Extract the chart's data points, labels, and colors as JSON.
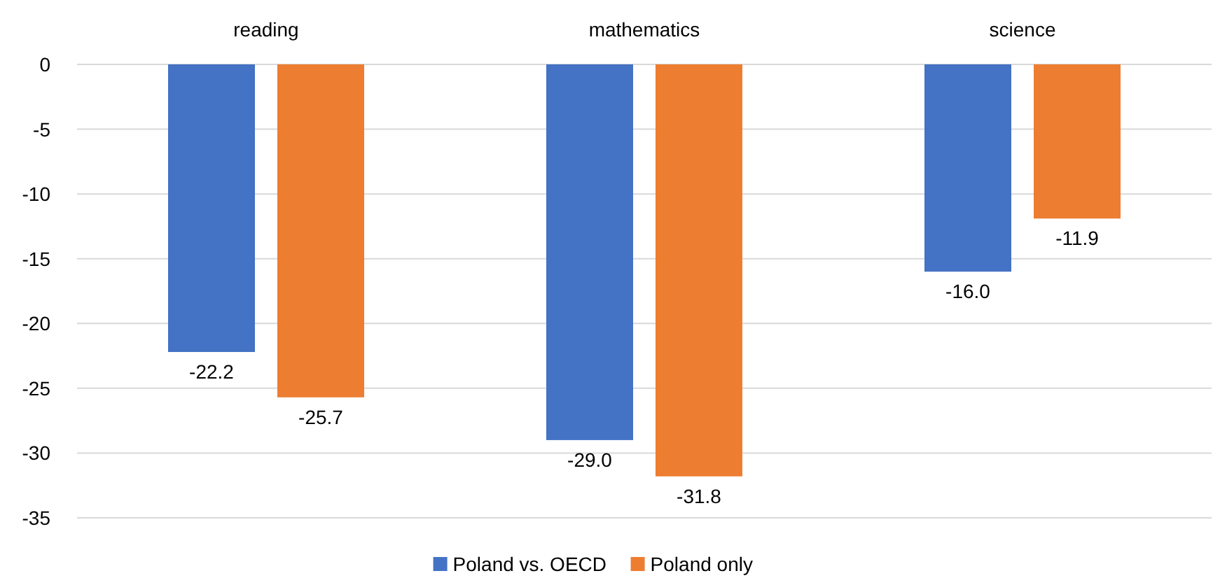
{
  "chart_data": {
    "type": "bar",
    "categories": [
      "reading",
      "mathematics",
      "science"
    ],
    "series": [
      {
        "name": "Poland vs. OECD",
        "color": "#4472c4",
        "values": [
          -22.2,
          -29.0,
          -16.0
        ],
        "value_labels": [
          "-22.2",
          "-29.0",
          "-16.0"
        ]
      },
      {
        "name": "Poland only",
        "color": "#ed7d31",
        "values": [
          -25.7,
          -31.8,
          -11.9
        ],
        "value_labels": [
          "-25.7",
          "-31.8",
          "-11.9"
        ]
      }
    ],
    "ylim": [
      -35,
      0
    ],
    "yticks": [
      -35,
      -30,
      -25,
      -20,
      -15,
      -10,
      -5,
      0
    ],
    "grid": "y",
    "legend": "bottom"
  }
}
